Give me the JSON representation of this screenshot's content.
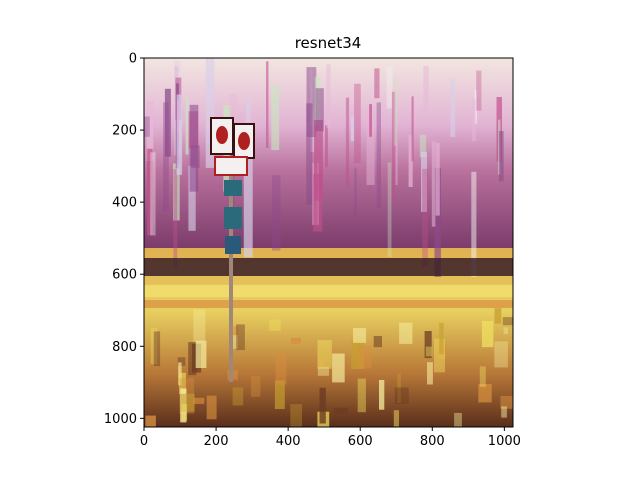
{
  "chart_data": {
    "type": "image",
    "title": "resnet34",
    "xlabel": "",
    "ylabel": "",
    "image_width": 1024,
    "image_height": 1024,
    "xlim": [
      0,
      1024
    ],
    "ylim": [
      1024,
      0
    ],
    "x_ticks": [
      0,
      200,
      400,
      600,
      800,
      1000
    ],
    "y_ticks": [
      0,
      200,
      400,
      600,
      800,
      1000
    ],
    "grid": false,
    "legend": "none",
    "image_description_colors": {
      "sky_pink": "#e8b8d8",
      "sky_green": "#c8e8c0",
      "magenta": "#c0508c",
      "purple": "#8c4a8c",
      "dark_band": "#3a1e28",
      "yellow": "#f0e060",
      "orange": "#d89040",
      "brown": "#6a3a22",
      "sign_red": "#b02020",
      "sign_white": "#f4f0f0",
      "sign_teal": "#2a6a7a"
    }
  }
}
